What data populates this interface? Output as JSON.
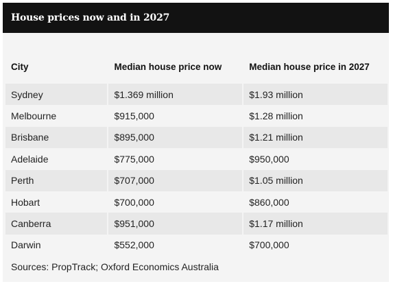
{
  "header": {
    "title": "House prices now and in 2027"
  },
  "table": {
    "columns": [
      "City",
      "Median house price now",
      "Median house price in 2027"
    ],
    "rows": [
      [
        "Sydney",
        "$1.369 million",
        "$1.93 million"
      ],
      [
        "Melbourne",
        "$915,000",
        "$1.28 million"
      ],
      [
        "Brisbane",
        "$895,000",
        "$1.21 million"
      ],
      [
        "Adelaide",
        "$775,000",
        "$950,000"
      ],
      [
        "Perth",
        "$707,000",
        "$1.05 million"
      ],
      [
        "Hobart",
        "$700,000",
        "$860,000"
      ],
      [
        "Canberra",
        "$951,000",
        "$1.17 million"
      ],
      [
        "Darwin",
        "$552,000",
        "$700,000"
      ]
    ]
  },
  "source": "Sources: PropTrack; Oxford Economics Australia",
  "colors": {
    "header_bg": "#121212",
    "card_bg": "#f4f4f4",
    "stripe": "#e8e8e8"
  }
}
